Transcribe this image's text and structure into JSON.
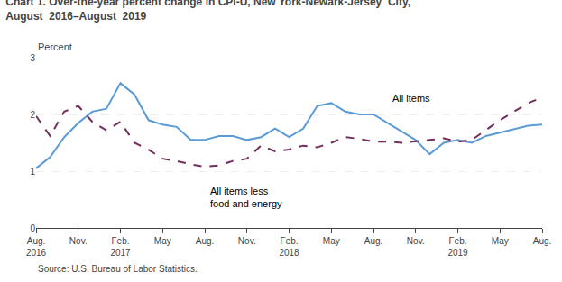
{
  "chart_data": {
    "type": "line",
    "title": "Chart 1. Over-the-year percent change in CPI-U, New York-Newark-Jersey  City,\nAugust  2016–August  2019",
    "y_label": "Percent",
    "source": "Source: U.S. Bureau of Labor Statistics.",
    "annotations": [
      "All items",
      "All items less\nfood and energy"
    ],
    "categories": [
      "Aug.\n2016",
      null,
      null,
      "Nov.",
      null,
      null,
      "Feb.\n2017",
      null,
      null,
      "May",
      null,
      null,
      "Aug.",
      null,
      null,
      "Nov.",
      null,
      null,
      "Feb.\n2018",
      null,
      null,
      "May",
      null,
      null,
      "Aug.",
      null,
      null,
      "Nov.",
      null,
      null,
      "Feb.\n2019",
      null,
      null,
      "May",
      null,
      null,
      "Aug."
    ],
    "series": [
      {
        "name": "All items",
        "color": "#5B9BD5",
        "line_style": "solid",
        "values": [
          1.05,
          1.25,
          1.6,
          1.85,
          2.05,
          2.1,
          2.55,
          2.35,
          1.9,
          1.82,
          1.78,
          1.55,
          1.55,
          1.62,
          1.62,
          1.55,
          1.6,
          1.75,
          1.6,
          1.75,
          2.15,
          2.2,
          2.05,
          2.0,
          2.0,
          1.85,
          1.7,
          1.55,
          1.3,
          1.5,
          1.55,
          1.5,
          1.62,
          1.68,
          1.75,
          1.8,
          1.82
        ]
      },
      {
        "name": "All items less food and energy",
        "color": "#722F5B",
        "line_style": "dashed",
        "values": [
          1.97,
          1.62,
          2.05,
          2.15,
          1.87,
          1.72,
          1.87,
          1.5,
          1.38,
          1.22,
          1.18,
          1.12,
          1.08,
          1.1,
          1.18,
          1.22,
          1.45,
          1.35,
          1.38,
          1.45,
          1.42,
          1.5,
          1.6,
          1.57,
          1.52,
          1.52,
          1.5,
          1.52,
          1.55,
          1.58,
          1.52,
          1.55,
          1.72,
          1.9,
          2.05,
          2.2,
          2.3
        ]
      }
    ],
    "ylim": [
      0,
      3.0
    ],
    "yticks": [
      0,
      1,
      2,
      3
    ],
    "grid": true
  }
}
